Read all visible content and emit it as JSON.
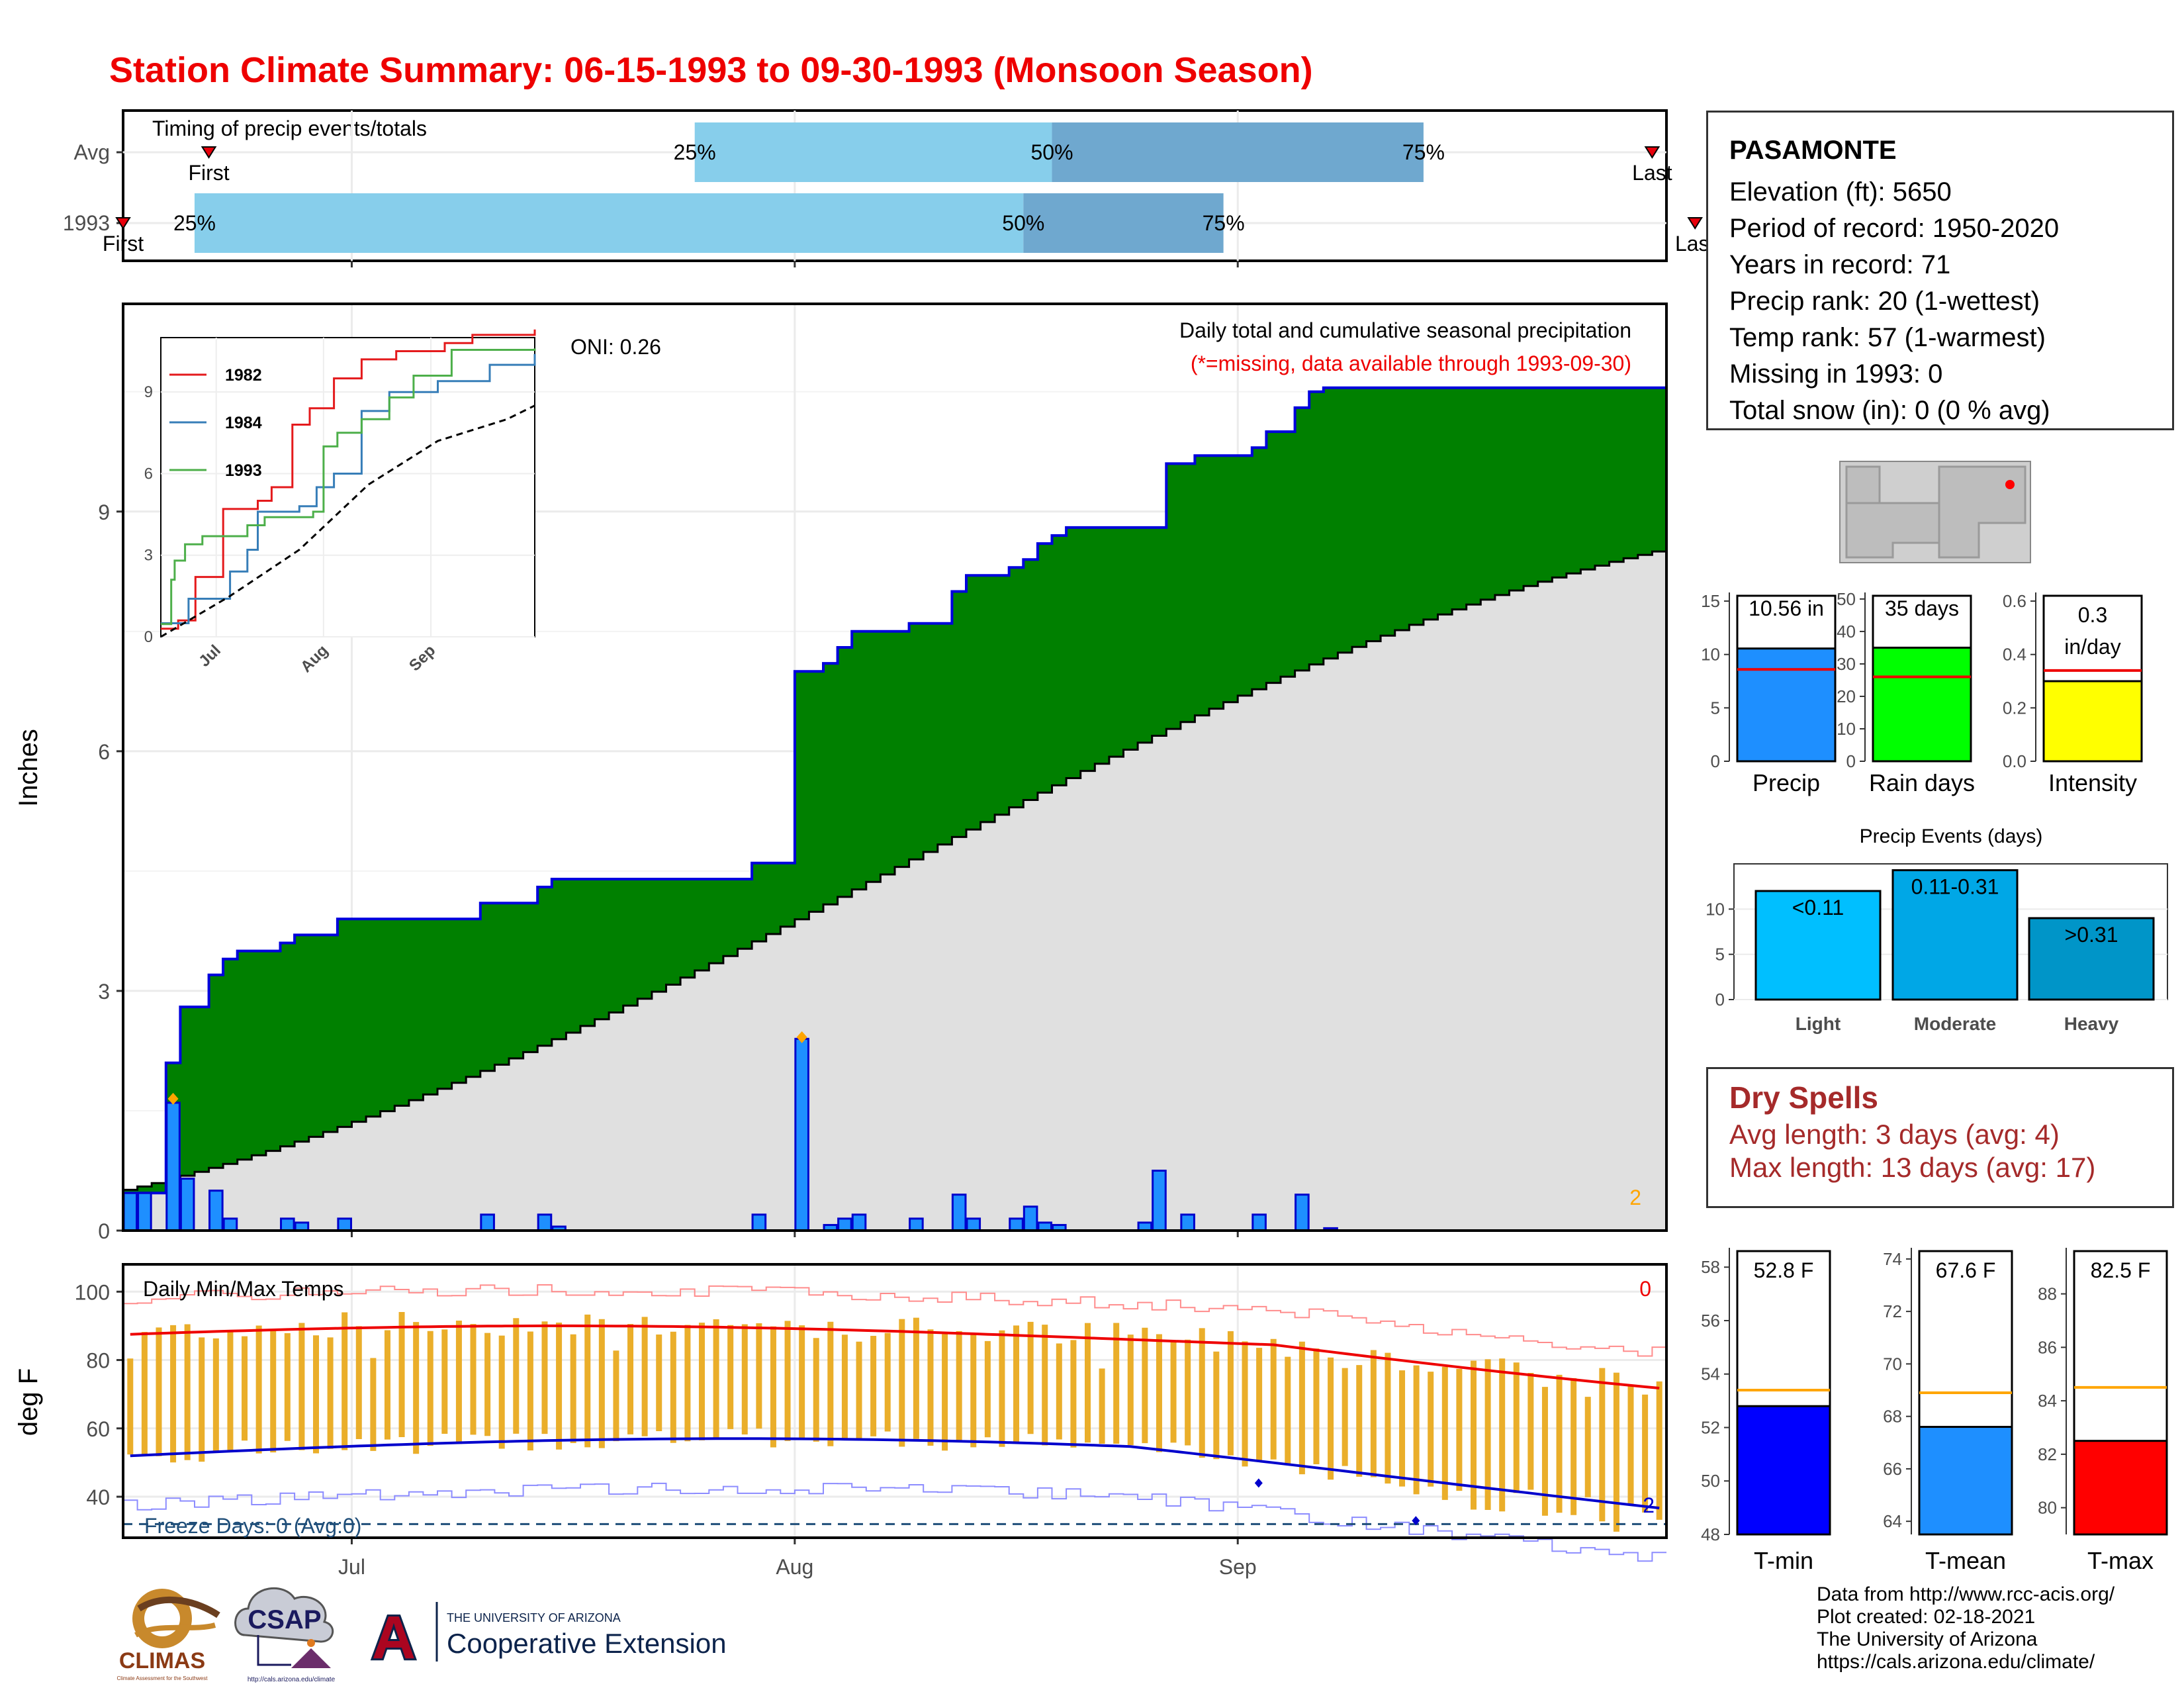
{
  "title": "Station Climate Summary: 06-15-1993 to 09-30-1993 (Monsoon Season)",
  "timing": {
    "label": "Timing of precip events/totals",
    "rows": [
      {
        "name": "Avg",
        "first_day": 6,
        "last_day": 107,
        "p25_day": 40,
        "p50_day": 65,
        "p75_day": 91
      },
      {
        "name": "1993",
        "first_day": 0,
        "last_day": 110,
        "p25_day": 5,
        "p50_day": 63,
        "p75_day": 77
      }
    ],
    "first_label": "First",
    "last_label": "Last",
    "p25_label": "25%",
    "p50_label": "50%",
    "p75_label": "75%",
    "colors": {
      "q1": "#87ceeb",
      "q2": "#6fa8cf",
      "marker": "#e8000b"
    }
  },
  "chart_data": {
    "type": "area",
    "title": "Daily total and cumulative seasonal precipitation",
    "subtitle": "(*=missing, data available through 1993-09-30)",
    "oni_label": "ONI: 0.26",
    "ylabel": "Inches",
    "ylim": [
      0,
      11.6
    ],
    "yticks": [
      "0",
      "3",
      "6",
      "9"
    ],
    "x_months": [
      {
        "label": "Jul",
        "day": 16
      },
      {
        "label": "Aug",
        "day": 47
      },
      {
        "label": "Sep",
        "day": 78
      }
    ],
    "corner_note": "2",
    "ndays": 108,
    "cumulative_1993_steps": [
      [
        0,
        0.47
      ],
      [
        3,
        2.1
      ],
      [
        4,
        2.8
      ],
      [
        6,
        3.2
      ],
      [
        7,
        3.4
      ],
      [
        8,
        3.5
      ],
      [
        11,
        3.6
      ],
      [
        12,
        3.7
      ],
      [
        15,
        3.9
      ],
      [
        25,
        4.1
      ],
      [
        29,
        4.3
      ],
      [
        30,
        4.4
      ],
      [
        44,
        4.6
      ],
      [
        47,
        7.0
      ],
      [
        49,
        7.1
      ],
      [
        50,
        7.3
      ],
      [
        51,
        7.5
      ],
      [
        55,
        7.6
      ],
      [
        58,
        8.0
      ],
      [
        59,
        8.2
      ],
      [
        62,
        8.3
      ],
      [
        63,
        8.4
      ],
      [
        64,
        8.6
      ],
      [
        65,
        8.7
      ],
      [
        66,
        8.8
      ],
      [
        73,
        9.6
      ],
      [
        75,
        9.7
      ],
      [
        79,
        9.8
      ],
      [
        80,
        10.0
      ],
      [
        82,
        10.3
      ],
      [
        83,
        10.5
      ],
      [
        84,
        10.55
      ]
    ],
    "cumulative_avg_end": 8.5,
    "daily_bars": [
      [
        0,
        0.47
      ],
      [
        1,
        0.47
      ],
      [
        3,
        1.6
      ],
      [
        4,
        0.65
      ],
      [
        6,
        0.5
      ],
      [
        7,
        0.15
      ],
      [
        11,
        0.15
      ],
      [
        12,
        0.1
      ],
      [
        15,
        0.15
      ],
      [
        25,
        0.2
      ],
      [
        29,
        0.2
      ],
      [
        30,
        0.05
      ],
      [
        44,
        0.2
      ],
      [
        47,
        2.4
      ],
      [
        49,
        0.07
      ],
      [
        50,
        0.15
      ],
      [
        51,
        0.2
      ],
      [
        55,
        0.15
      ],
      [
        58,
        0.45
      ],
      [
        59,
        0.15
      ],
      [
        62,
        0.15
      ],
      [
        63,
        0.3
      ],
      [
        64,
        0.1
      ],
      [
        65,
        0.07
      ],
      [
        71,
        0.1
      ],
      [
        72,
        0.75
      ],
      [
        74,
        0.2
      ],
      [
        79,
        0.2
      ],
      [
        82,
        0.45
      ],
      [
        84,
        0.03
      ]
    ],
    "max_markers": [
      [
        3,
        1.65
      ],
      [
        47,
        2.42
      ]
    ],
    "series": [
      {
        "name": "1993 cumulative",
        "color": "#0000dd",
        "fill": "#008000"
      },
      {
        "name": "Average cumulative",
        "color": "#000000",
        "fill": "#e0e0e0"
      },
      {
        "name": "Daily precip",
        "color": "#0000ff",
        "fill": "#1e8fff"
      }
    ]
  },
  "inset_chart": {
    "type": "line",
    "yticks": [
      "0",
      "3",
      "6",
      "9"
    ],
    "ylim": [
      0,
      11
    ],
    "x_months": [
      {
        "label": "Jul",
        "day": 16
      },
      {
        "label": "Aug",
        "day": 47
      },
      {
        "label": "Sep",
        "day": 78
      }
    ],
    "series": [
      {
        "name": "1982",
        "color": "#e41a1c",
        "points": [
          [
            0,
            0.3
          ],
          [
            5,
            0.6
          ],
          [
            10,
            2.2
          ],
          [
            18,
            4.7
          ],
          [
            28,
            5.0
          ],
          [
            32,
            5.5
          ],
          [
            38,
            7.8
          ],
          [
            43,
            8.4
          ],
          [
            50,
            9.5
          ],
          [
            58,
            10.2
          ],
          [
            68,
            10.5
          ],
          [
            82,
            10.8
          ],
          [
            90,
            11.1
          ],
          [
            108,
            11.3
          ]
        ]
      },
      {
        "name": "1984",
        "color": "#377eb8",
        "points": [
          [
            0,
            0.5
          ],
          [
            8,
            1.4
          ],
          [
            20,
            2.4
          ],
          [
            25,
            3.2
          ],
          [
            28,
            4.6
          ],
          [
            40,
            4.8
          ],
          [
            45,
            5.5
          ],
          [
            50,
            6.0
          ],
          [
            58,
            8.3
          ],
          [
            66,
            9.0
          ],
          [
            80,
            9.4
          ],
          [
            95,
            10.0
          ],
          [
            108,
            10.4
          ]
        ]
      },
      {
        "name": "1993",
        "color": "#4daf4a",
        "points": [
          [
            0,
            0.47
          ],
          [
            3,
            2.1
          ],
          [
            4,
            2.8
          ],
          [
            7,
            3.4
          ],
          [
            12,
            3.7
          ],
          [
            25,
            4.1
          ],
          [
            30,
            4.4
          ],
          [
            44,
            4.6
          ],
          [
            47,
            7.0
          ],
          [
            51,
            7.5
          ],
          [
            58,
            8.0
          ],
          [
            66,
            8.8
          ],
          [
            73,
            9.6
          ],
          [
            84,
            10.55
          ],
          [
            108,
            10.6
          ]
        ]
      },
      {
        "name": "Avg",
        "color": "#000000",
        "dash": true,
        "points": [
          [
            0,
            0
          ],
          [
            20,
            1.5
          ],
          [
            40,
            3.2
          ],
          [
            60,
            5.6
          ],
          [
            80,
            7.2
          ],
          [
            100,
            8.0
          ],
          [
            108,
            8.5
          ]
        ]
      }
    ]
  },
  "temps": {
    "title": "Daily Min/Max Temps",
    "ylabel": "deg F",
    "yticks": [
      40,
      60,
      80,
      100
    ],
    "ylim": [
      28,
      108
    ],
    "freeze_label": "Freeze Days: 0 (Avg:0)",
    "corner_red": "0",
    "corner_blue": "2",
    "freeze_line": 32,
    "x_months": [
      {
        "label": "Jul",
        "day": 16
      },
      {
        "label": "Aug",
        "day": 47
      },
      {
        "label": "Sep",
        "day": 78
      }
    ]
  },
  "station": {
    "name": "PASAMONTE",
    "lines": [
      "Elevation (ft): 5650",
      "Period of record: 1950-2020",
      "Years in record: 71",
      "Precip rank: 20 (1-wettest)",
      "Temp rank: 57 (1-warmest)",
      "Missing in 1993: 0",
      "Total snow (in): 0 (0 % avg)"
    ]
  },
  "summary_bars": [
    {
      "label": "Precip",
      "value": 10.56,
      "value_label": "10.56 in",
      "avg": 8.6,
      "ymax": 15.5,
      "yticks": [
        "0",
        "5",
        "10",
        "15"
      ],
      "color": "#1e8fff"
    },
    {
      "label": "Rain days",
      "value": 35,
      "value_label": "35 days",
      "avg": 26,
      "ymax": 51,
      "yticks": [
        "0",
        "10",
        "20",
        "30",
        "40",
        "50"
      ],
      "color": "#00ff00"
    },
    {
      "label": "Intensity",
      "value": 0.3,
      "value_label": "0.3 in/day",
      "avg": 0.34,
      "ymax": 0.62,
      "yticks": [
        "0.0",
        "0.2",
        "0.4",
        "0.6"
      ],
      "color": "#ffff00"
    }
  ],
  "events": {
    "title": "Precip Events (days)",
    "ymax": 15,
    "yticks": [
      "0",
      "5",
      "10"
    ],
    "bars": [
      {
        "label": "Light",
        "range": "<0.11",
        "value": 12,
        "color": "#00bfff"
      },
      {
        "label": "Moderate",
        "range": "0.11-0.31",
        "value": 14.3,
        "color": "#00a7e6"
      },
      {
        "label": "Heavy",
        "range": ">0.31",
        "value": 9,
        "color": "#0095c8"
      }
    ]
  },
  "dry_spells": {
    "title": "Dry Spells",
    "avg_line": "Avg length: 3 days (avg: 4)",
    "max_line": "Max length: 13 days (avg: 17)",
    "color": "#a52a2a"
  },
  "temp_bars": [
    {
      "label": "T-min",
      "value": 52.8,
      "value_label": "52.8 F",
      "avg": 53.4,
      "ymin": 48,
      "ymax": 58.6,
      "yticks": [
        "48",
        "50",
        "52",
        "54",
        "56",
        "58"
      ],
      "color": "#0000ff"
    },
    {
      "label": "T-mean",
      "value": 67.6,
      "value_label": "67.6 F",
      "avg": 68.9,
      "ymin": 63.5,
      "ymax": 74.3,
      "yticks": [
        "64",
        "66",
        "68",
        "70",
        "72",
        "74"
      ],
      "color": "#1e8fff"
    },
    {
      "label": "T-max",
      "value": 82.5,
      "value_label": "82.5 F",
      "avg": 84.5,
      "ymin": 79,
      "ymax": 89.6,
      "yticks": [
        "80",
        "82",
        "84",
        "86",
        "88"
      ],
      "color": "#ff0000"
    }
  ],
  "footer": {
    "lines": [
      "Data from http://www.rcc-acis.org/",
      "Plot created: 02-18-2021",
      "The University of Arizona",
      "https://cals.arizona.edu/climate/"
    ],
    "logos": {
      "climas": "CLIMAS",
      "climas_sub": "Climate Assessment for the Southwest",
      "csap": "CSAP",
      "csap_sub": "http://cals.arizona.edu/climate",
      "ua_small": "THE UNIVERSITY OF ARIZONA",
      "ua_big": "Cooperative Extension",
      "ua_letter": "A"
    }
  }
}
